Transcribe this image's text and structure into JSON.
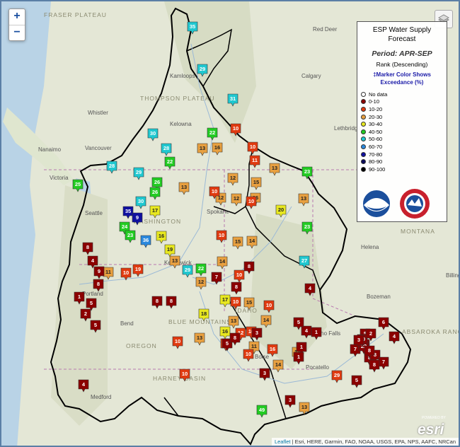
{
  "legend": {
    "title_line1": "ESP Water Supply",
    "title_line2": "Forecast",
    "period": "Period: APR-SEP",
    "rank": "Rank (Descending)",
    "note_line1": "‡Marker Color Shows",
    "note_line2": "Exceedance (%)",
    "items": [
      {
        "label": "No data",
        "color": "#ffffff"
      },
      {
        "label": "0-10",
        "color": "#8b0000"
      },
      {
        "label": "10-20",
        "color": "#e03a10"
      },
      {
        "label": "20-30",
        "color": "#e8a040"
      },
      {
        "label": "30-40",
        "color": "#e8e820"
      },
      {
        "label": "40-50",
        "color": "#22cc22"
      },
      {
        "label": "50-60",
        "color": "#20c8d0"
      },
      {
        "label": "60-70",
        "color": "#2a88dd"
      },
      {
        "label": "70-80",
        "color": "#1010a0"
      },
      {
        "label": "80-90",
        "color": "#0a0a5a"
      },
      {
        "label": "90-100",
        "color": "#000000"
      }
    ]
  },
  "zoom": {
    "in": "+",
    "out": "−"
  },
  "attribution": {
    "leaflet": "Leaflet",
    "sources": " | Esri, HERE, Garmin, FAO, NOAA, USGS, EPA, NPS, AAFC, NRCan"
  },
  "esri": {
    "logo": "esri",
    "powered": "POWERED BY"
  },
  "places": [
    "FRASER PLATEAU",
    "Red Deer",
    "Calgary",
    "Kamloops",
    "Whistler",
    "Kelowna",
    "Nanaimo",
    "Vancouver",
    "Victoria",
    "Lethbridge",
    "Seattle",
    "Spokane",
    "Kennewick",
    "Portland",
    "Helena",
    "Billings",
    "Medford",
    "Bend",
    "Boise",
    "Idaho Falls",
    "Pocatello",
    "Bozeman",
    "OREGON",
    "MONTANA",
    "IDAHO",
    "WASHINGTON",
    "HARNEY BASIN",
    "BLUE MOUNTAINS",
    "THOMPSON PLATEAU",
    "ABSAROKA RANGE"
  ],
  "markers": [
    {
      "v": "35",
      "c": "#20c8d0"
    },
    {
      "v": "29",
      "c": "#20c8d0"
    },
    {
      "v": "31",
      "c": "#20c8d0"
    },
    {
      "v": "30",
      "c": "#20c8d0"
    },
    {
      "v": "28",
      "c": "#20c8d0"
    },
    {
      "v": "28",
      "c": "#20c8d0"
    },
    {
      "v": "22",
      "c": "#22cc22"
    },
    {
      "v": "29",
      "c": "#20c8d0"
    },
    {
      "v": "26",
      "c": "#22cc22"
    },
    {
      "v": "26",
      "c": "#22cc22"
    },
    {
      "v": "25",
      "c": "#22cc22"
    },
    {
      "v": "22",
      "c": "#22cc22"
    },
    {
      "v": "30",
      "c": "#20c8d0"
    },
    {
      "v": "35",
      "c": "#1010a0"
    },
    {
      "v": "9",
      "c": "#1010a0"
    },
    {
      "v": "24",
      "c": "#22cc22"
    },
    {
      "v": "23",
      "c": "#22cc22"
    },
    {
      "v": "36",
      "c": "#2a88dd"
    },
    {
      "v": "17",
      "c": "#e8e820"
    },
    {
      "v": "16",
      "c": "#e8e820"
    },
    {
      "v": "19",
      "c": "#e8e820"
    },
    {
      "v": "29",
      "c": "#20c8d0"
    },
    {
      "v": "22",
      "c": "#22cc22"
    },
    {
      "v": "27",
      "c": "#20c8d0"
    },
    {
      "v": "23",
      "c": "#22cc22"
    },
    {
      "v": "23",
      "c": "#22cc22"
    },
    {
      "v": "20",
      "c": "#e8e820"
    },
    {
      "v": "18",
      "c": "#e8e820"
    },
    {
      "v": "17",
      "c": "#e8e820"
    },
    {
      "v": "16",
      "c": "#e8e820"
    },
    {
      "v": "49",
      "c": "#22cc22"
    },
    {
      "v": "13",
      "c": "#e8a040"
    },
    {
      "v": "16",
      "c": "#e8a040"
    },
    {
      "v": "13",
      "c": "#e8a040"
    },
    {
      "v": "12",
      "c": "#e8a040"
    },
    {
      "v": "13",
      "c": "#e8a040"
    },
    {
      "v": "15",
      "c": "#e8a040"
    },
    {
      "v": "16",
      "c": "#e8a040"
    },
    {
      "v": "12",
      "c": "#e8a040"
    },
    {
      "v": "12",
      "c": "#e8a040"
    },
    {
      "v": "13",
      "c": "#e8a040"
    },
    {
      "v": "15",
      "c": "#e8a040"
    },
    {
      "v": "14",
      "c": "#e8a040"
    },
    {
      "v": "11",
      "c": "#e8a040"
    },
    {
      "v": "13",
      "c": "#e8a040"
    },
    {
      "v": "14",
      "c": "#e8a040"
    },
    {
      "v": "12",
      "c": "#e8a040"
    },
    {
      "v": "13",
      "c": "#e8a040"
    },
    {
      "v": "14",
      "c": "#e8a040"
    },
    {
      "v": "11",
      "c": "#e8a040"
    },
    {
      "v": "14",
      "c": "#e8a040"
    },
    {
      "v": "13",
      "c": "#e8a040"
    },
    {
      "v": "12",
      "c": "#e8a040"
    },
    {
      "v": "13",
      "c": "#e8a040"
    },
    {
      "v": "15",
      "c": "#e8a040"
    },
    {
      "v": "10",
      "c": "#e03a10"
    },
    {
      "v": "10",
      "c": "#e03a10"
    },
    {
      "v": "11",
      "c": "#e03a10"
    },
    {
      "v": "10",
      "c": "#e03a10"
    },
    {
      "v": "10",
      "c": "#e03a10"
    },
    {
      "v": "10",
      "c": "#e03a10"
    },
    {
      "v": "10",
      "c": "#e03a10"
    },
    {
      "v": "10",
      "c": "#e03a10"
    },
    {
      "v": "19",
      "c": "#e03a10"
    },
    {
      "v": "10",
      "c": "#e03a10"
    },
    {
      "v": "10",
      "c": "#e03a10"
    },
    {
      "v": "12",
      "c": "#e03a10"
    },
    {
      "v": "10",
      "c": "#e03a10"
    },
    {
      "v": "10",
      "c": "#e03a10"
    },
    {
      "v": "16",
      "c": "#e03a10"
    },
    {
      "v": "10",
      "c": "#e03a10"
    },
    {
      "v": "11",
      "c": "#e03a10"
    },
    {
      "v": "10",
      "c": "#e03a10"
    },
    {
      "v": "29",
      "c": "#e03a10"
    },
    {
      "v": "4",
      "c": "#8b0000"
    },
    {
      "v": "8",
      "c": "#8b0000"
    },
    {
      "v": "1",
      "c": "#8b0000"
    },
    {
      "v": "5",
      "c": "#8b0000"
    },
    {
      "v": "2",
      "c": "#8b0000"
    },
    {
      "v": "5",
      "c": "#8b0000"
    },
    {
      "v": "8",
      "c": "#8b0000"
    },
    {
      "v": "9",
      "c": "#8b0000"
    },
    {
      "v": "8",
      "c": "#8b0000"
    },
    {
      "v": "8",
      "c": "#8b0000"
    },
    {
      "v": "8",
      "c": "#8b0000"
    },
    {
      "v": "7",
      "c": "#8b0000"
    },
    {
      "v": "4",
      "c": "#8b0000"
    },
    {
      "v": "8",
      "c": "#8b0000"
    },
    {
      "v": "5",
      "c": "#8b0000"
    },
    {
      "v": "8",
      "c": "#8b0000"
    },
    {
      "v": "3",
      "c": "#8b0000"
    },
    {
      "v": "4",
      "c": "#8b0000"
    },
    {
      "v": "1",
      "c": "#8b0000"
    },
    {
      "v": "1",
      "c": "#8b0000"
    },
    {
      "v": "1",
      "c": "#8b0000"
    },
    {
      "v": "3",
      "c": "#8b0000"
    },
    {
      "v": "7",
      "c": "#8b0000"
    },
    {
      "v": "2",
      "c": "#8b0000"
    },
    {
      "v": "5",
      "c": "#8b0000"
    },
    {
      "v": "8",
      "c": "#8b0000"
    },
    {
      "v": "3",
      "c": "#8b0000"
    },
    {
      "v": "22",
      "c": "#8b0000"
    },
    {
      "v": "20",
      "c": "#8b0000"
    },
    {
      "v": "8",
      "c": "#8b0000"
    },
    {
      "v": "7",
      "c": "#8b0000"
    },
    {
      "v": "4",
      "c": "#8b0000"
    },
    {
      "v": "4",
      "c": "#8b0000"
    },
    {
      "v": "2",
      "c": "#8b0000"
    },
    {
      "v": "3",
      "c": "#8b0000"
    },
    {
      "v": "5",
      "c": "#8b0000"
    },
    {
      "v": "6",
      "c": "#8b0000"
    },
    {
      "v": "5",
      "c": "#8b0000"
    },
    {
      "v": "8",
      "c": "#8b0000"
    },
    {
      "v": "8",
      "c": "#8b0000"
    }
  ]
}
